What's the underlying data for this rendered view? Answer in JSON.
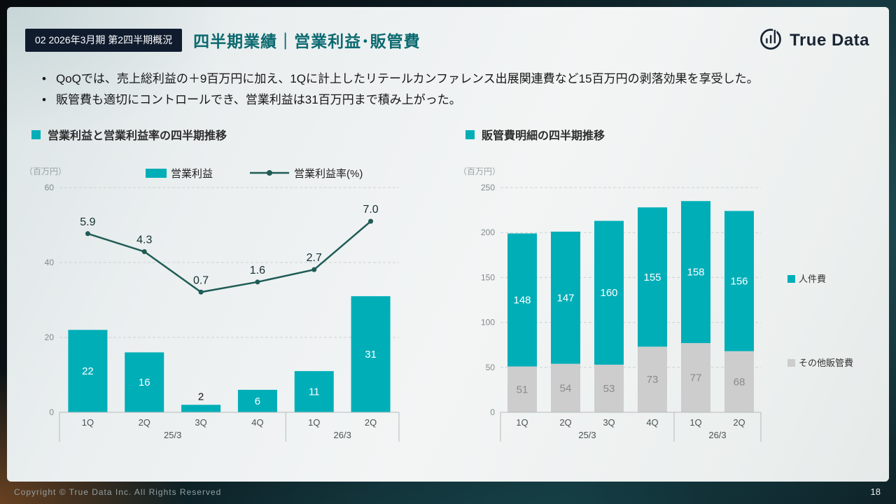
{
  "header": {
    "badge": "02 2026年3月期 第2四半期概況",
    "title": "四半期業績｜営業利益･販管費",
    "logo_text": "True Data"
  },
  "bullets": [
    "QoQでは、売上総利益の＋9百万円に加え、1Qに計上したリテールカンファレンス出展関連費など15百万円の剥落効果を享受した。",
    "販管費も適切にコントロールでき、営業利益は31百万円まで積み上がった。"
  ],
  "colors": {
    "teal": "#00AEB8",
    "line": "#1F5C55",
    "gray_bar": "#CDCDCD",
    "title_teal": "#0B6A70",
    "badge_bg": "#101C2E"
  },
  "chart_data": [
    {
      "type": "bar+line",
      "section_title": "営業利益と営業利益率の四半期推移",
      "unit_label": "（百万円）",
      "legend": [
        {
          "label": "営業利益",
          "type": "bar"
        },
        {
          "label": "営業利益率(%)",
          "type": "line"
        }
      ],
      "categories": [
        "1Q",
        "2Q",
        "3Q",
        "4Q",
        "1Q",
        "2Q"
      ],
      "group_labels": [
        {
          "label": "25/3",
          "span": 4
        },
        {
          "label": "26/3",
          "span": 2
        }
      ],
      "bar_values": [
        22,
        16,
        2,
        6,
        11,
        31
      ],
      "line_values": [
        5.9,
        4.3,
        0.7,
        1.6,
        2.7,
        7.0
      ],
      "ylim": [
        0,
        60
      ],
      "yticks": [
        0,
        20,
        40,
        60
      ],
      "y2lim": [
        -10,
        10
      ],
      "grid": "dashed",
      "legend_position": "top"
    },
    {
      "type": "stacked-bar",
      "section_title": "販管費明細の四半期推移",
      "unit_label": "（百万円）",
      "categories": [
        "1Q",
        "2Q",
        "3Q",
        "4Q",
        "1Q",
        "2Q"
      ],
      "group_labels": [
        {
          "label": "25/3",
          "span": 4
        },
        {
          "label": "26/3",
          "span": 2
        }
      ],
      "series": [
        {
          "name": "その他販管費",
          "values": [
            51,
            54,
            53,
            73,
            77,
            68
          ],
          "color": "#CDCDCD",
          "label_color": "#8a8a8a"
        },
        {
          "name": "人件費",
          "values": [
            148,
            147,
            160,
            155,
            158,
            156
          ],
          "color": "#00AEB8",
          "label_color": "#ffffff"
        }
      ],
      "legend": [
        {
          "label": "人件費"
        },
        {
          "label": "その他販管費"
        }
      ],
      "ylim": [
        0,
        250
      ],
      "yticks": [
        0,
        50,
        100,
        150,
        200,
        250
      ],
      "grid": "dashed",
      "legend_position": "right"
    }
  ],
  "footer": {
    "copyright": "Copyright © True Data Inc. All Rights Reserved",
    "page_number": "18"
  }
}
